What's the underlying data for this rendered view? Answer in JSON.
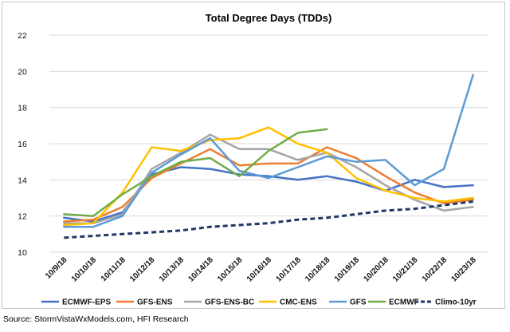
{
  "chart_data": {
    "type": "line",
    "title": "Total Degree Days (TDDs)",
    "xlabel": "",
    "ylabel": "",
    "ylim": [
      10,
      22
    ],
    "yticks": [
      10,
      12,
      14,
      16,
      18,
      20,
      22
    ],
    "grid": "horizontal",
    "legend_position": "bottom",
    "categories": [
      "10/9/18",
      "10/10/18",
      "10/11/18",
      "10/12/18",
      "10/13/18",
      "10/14/18",
      "10/15/18",
      "10/16/18",
      "10/17/18",
      "10/18/18",
      "10/19/18",
      "10/20/18",
      "10/21/18",
      "10/22/18",
      "10/23/18"
    ],
    "series": [
      {
        "name": "ECMWF-EPS",
        "color": "#4472C4",
        "dash": false,
        "values": [
          11.9,
          11.7,
          12.2,
          14.3,
          14.7,
          14.6,
          14.3,
          14.2,
          14.0,
          14.2,
          13.9,
          13.4,
          14.0,
          13.6,
          13.7
        ]
      },
      {
        "name": "GFS-ENS",
        "color": "#ED7D31",
        "dash": false,
        "values": [
          11.7,
          11.8,
          12.5,
          14.1,
          14.9,
          15.7,
          14.8,
          14.9,
          14.9,
          15.8,
          15.2,
          14.2,
          13.3,
          12.7,
          12.9
        ]
      },
      {
        "name": "GFS-ENS-BC",
        "color": "#A5A5A5",
        "dash": false,
        "values": [
          11.6,
          11.6,
          12.1,
          14.6,
          15.5,
          16.5,
          15.7,
          15.7,
          15.1,
          15.5,
          14.7,
          13.7,
          12.9,
          12.3,
          12.5
        ]
      },
      {
        "name": "CMC-ENS",
        "color": "#FFC000",
        "dash": false,
        "values": [
          11.5,
          11.6,
          13.3,
          15.8,
          15.6,
          16.2,
          16.3,
          16.9,
          16.0,
          15.5,
          14.1,
          13.4,
          13.0,
          12.8,
          13.0
        ]
      },
      {
        "name": "GFS",
        "color": "#5B9BD5",
        "dash": false,
        "values": [
          11.4,
          11.4,
          12.0,
          14.4,
          15.4,
          16.3,
          14.5,
          14.1,
          14.7,
          15.3,
          15.0,
          15.1,
          13.7,
          14.6,
          19.8
        ]
      },
      {
        "name": "ECMWF",
        "color": "#70AD47",
        "dash": false,
        "values": [
          12.1,
          12.0,
          13.2,
          14.2,
          15.0,
          15.2,
          14.2,
          15.6,
          16.6,
          16.8,
          null,
          null,
          null,
          null,
          null
        ]
      },
      {
        "name": "Climo-10yr",
        "color": "#1F3864",
        "dash": true,
        "values": [
          10.8,
          10.9,
          11.0,
          11.1,
          11.2,
          11.4,
          11.5,
          11.6,
          11.8,
          11.9,
          12.1,
          12.3,
          12.4,
          12.6,
          12.8
        ]
      }
    ]
  },
  "source": "Source: StormVistaWxModels.com, HFI Research"
}
